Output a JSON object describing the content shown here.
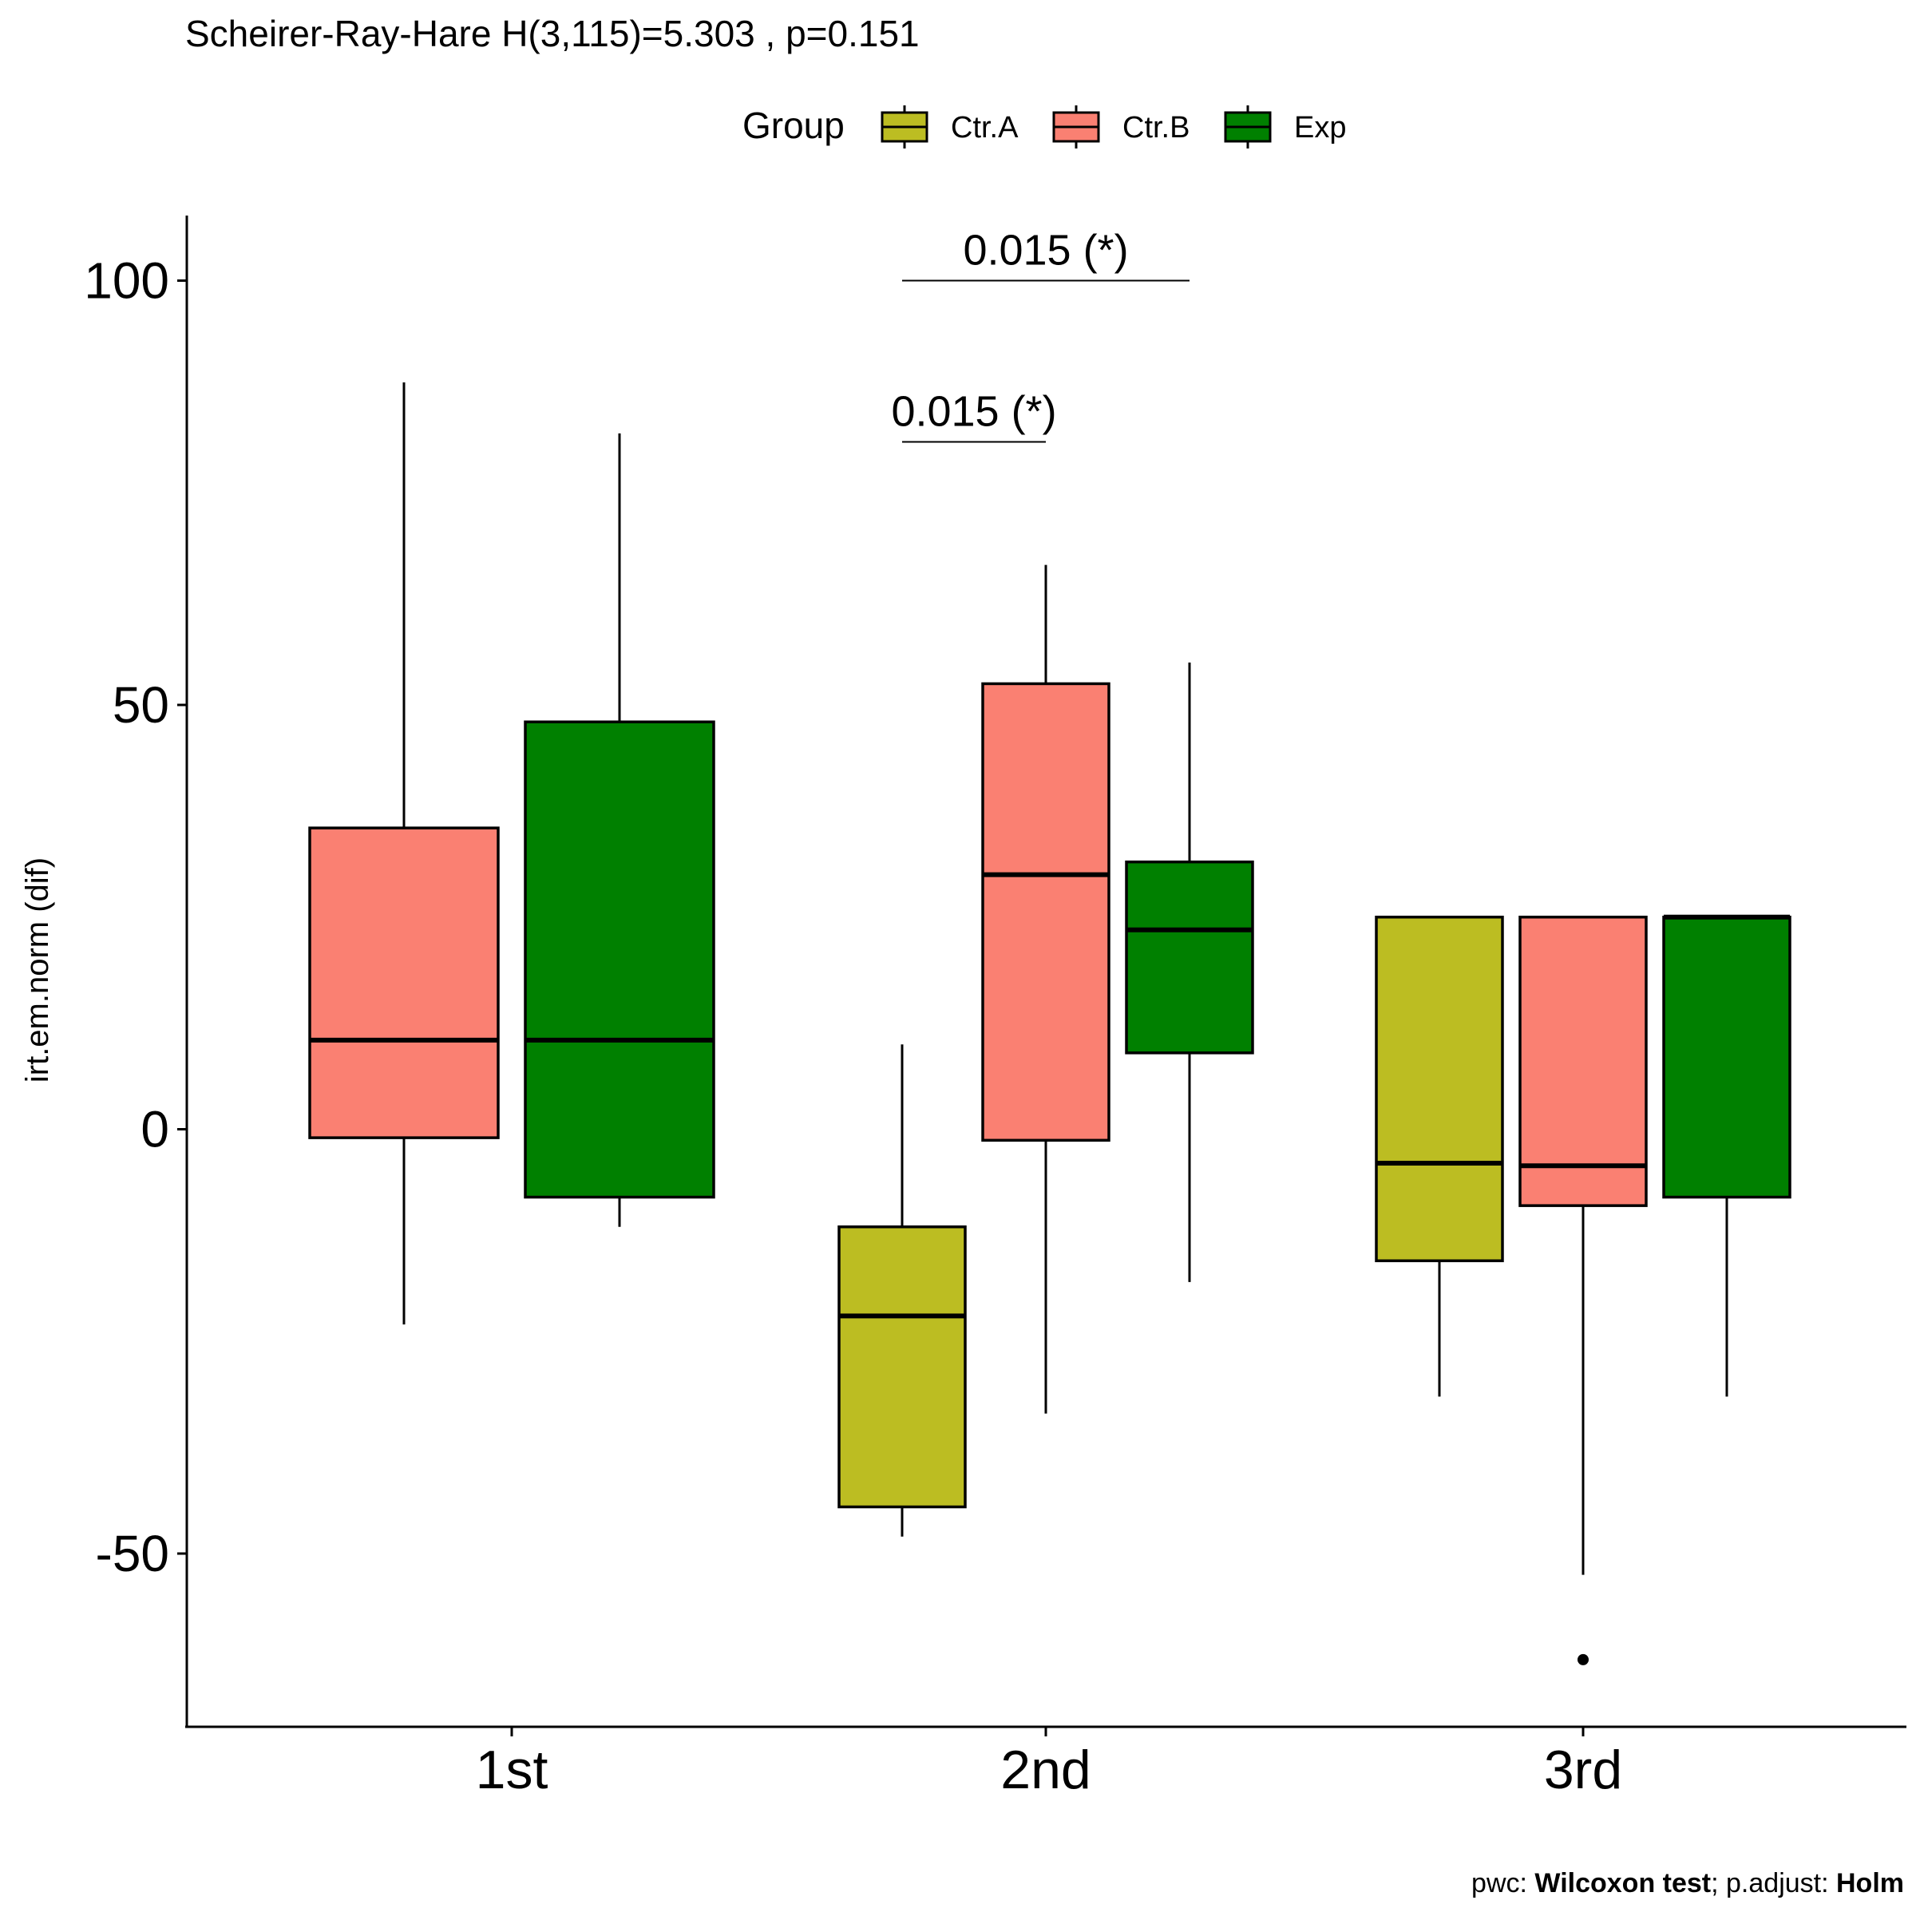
{
  "chart_data": {
    "type": "box",
    "title": "Scheirer-Ray-Hare H(3,115)=5.303 , p=0.151",
    "ylabel": "irt.em.norm (dif)",
    "xlabel": "",
    "ylim": [
      -70,
      108
    ],
    "yticks": [
      -50,
      0,
      50,
      100
    ],
    "categories": [
      "1st",
      "2nd",
      "3rd"
    ],
    "grid": false,
    "legend": {
      "title": "Group",
      "placement": "top",
      "entries": [
        "Ctr.A",
        "Ctr.B",
        "Exp"
      ]
    },
    "series": [
      {
        "name": "Ctr.A",
        "color": "#bcbd22",
        "boxes": [
          null,
          {
            "category": "2nd",
            "whisker_low": -48,
            "q1": -44.5,
            "median": -22,
            "q3": -11.5,
            "whisker_high": 10,
            "outliers": []
          },
          {
            "category": "3rd",
            "whisker_low": -31.5,
            "q1": -15.5,
            "median": -4,
            "q3": 25,
            "whisker_high": 25,
            "outliers": []
          }
        ]
      },
      {
        "name": "Ctr.B",
        "color": "#fa8072",
        "boxes": [
          {
            "category": "1st",
            "whisker_low": -23,
            "q1": -1,
            "median": 10.5,
            "q3": 35.5,
            "whisker_high": 88,
            "outliers": []
          },
          {
            "category": "2nd",
            "whisker_low": -33.5,
            "q1": -1.3,
            "median": 30,
            "q3": 52.5,
            "whisker_high": 66.5,
            "outliers": []
          },
          {
            "category": "3rd",
            "whisker_low": -52.5,
            "q1": -9,
            "median": -4.3,
            "q3": 25,
            "whisker_high": 25,
            "outliers": [
              -62.5
            ]
          }
        ]
      },
      {
        "name": "Exp",
        "color": "#008000",
        "boxes": [
          {
            "category": "1st",
            "whisker_low": -11.5,
            "q1": -8,
            "median": 10.5,
            "q3": 48,
            "whisker_high": 82,
            "outliers": []
          },
          {
            "category": "2nd",
            "whisker_low": -18,
            "q1": 9,
            "median": 23.5,
            "q3": 31.5,
            "whisker_high": 55,
            "outliers": []
          },
          {
            "category": "3rd",
            "whisker_low": -31.5,
            "q1": -8,
            "median": 25,
            "q3": 25,
            "whisker_high": 25,
            "outliers": []
          }
        ]
      }
    ],
    "annotations": [
      {
        "label": "0.015 (*)",
        "category": "2nd",
        "from_group": "Ctr.A",
        "to_group": "Exp",
        "y": 100
      },
      {
        "label": "0.015 (*)",
        "category": "2nd",
        "from_group": "Ctr.A",
        "to_group": "Ctr.B",
        "y": 81
      }
    ],
    "caption": {
      "prefix": "pwc: ",
      "test": "Wilcoxon test",
      "middle": "; p.adjust: ",
      "method": "Holm"
    }
  }
}
